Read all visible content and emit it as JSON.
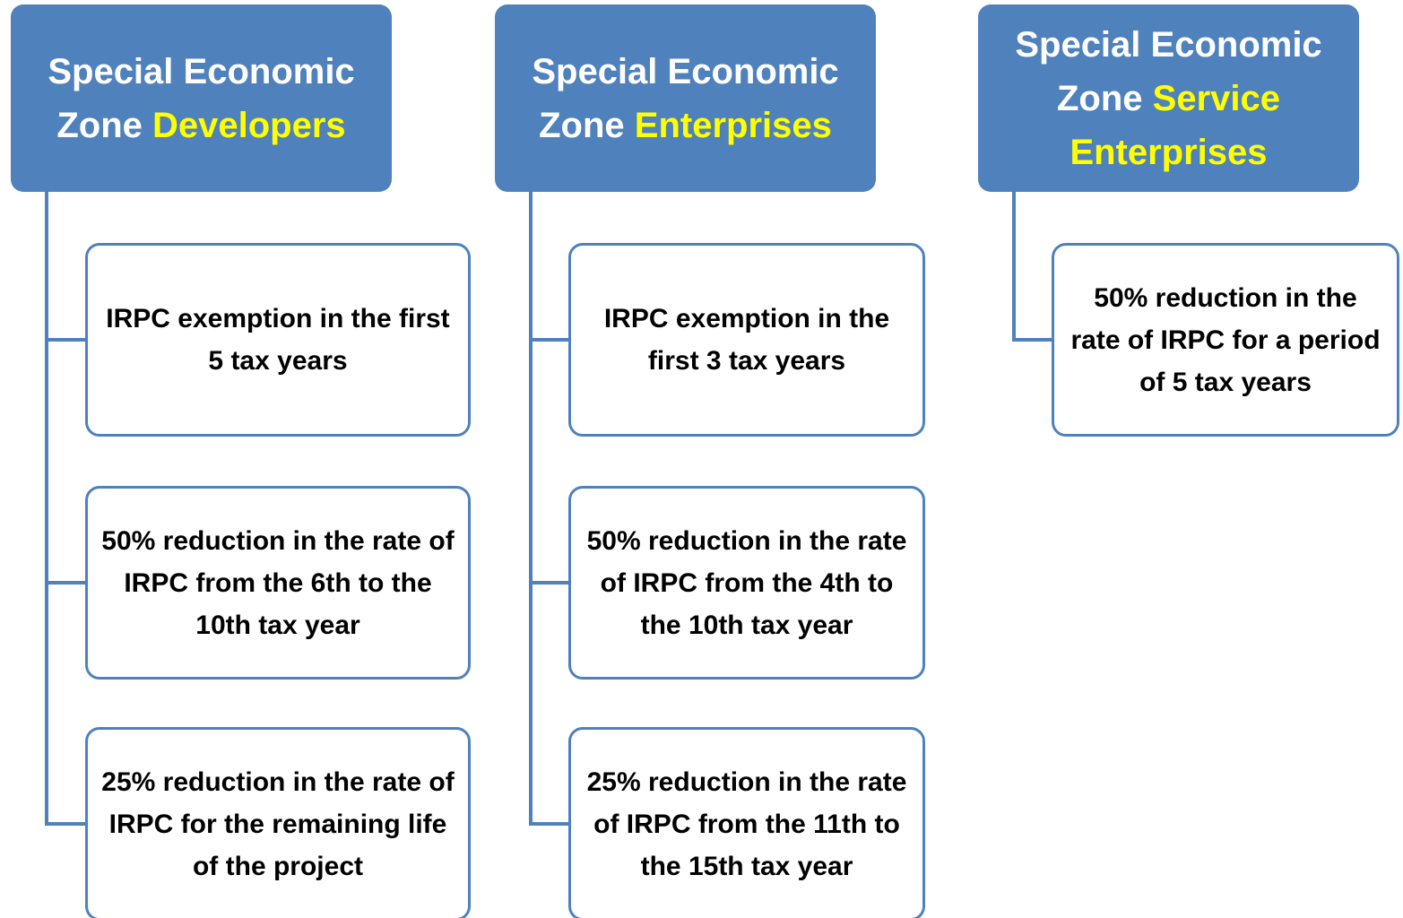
{
  "columns": [
    {
      "header": {
        "prefix": "Special Economic Zone",
        "highlight": "Developers"
      },
      "items": [
        "IRPC exemption in the first 5 tax years",
        "50% reduction in the rate of IRPC from the 6th to the 10th tax year",
        "25% reduction in the rate of IRPC for the remaining life of the project"
      ]
    },
    {
      "header": {
        "prefix": "Special Economic Zone",
        "highlight": "Enterprises"
      },
      "items": [
        "IRPC exemption in the first 3 tax years",
        "50% reduction in the rate of IRPC from the 4th to the 10th tax year",
        "25% reduction in the rate of IRPC from the 11th to the 15th tax year"
      ]
    },
    {
      "header": {
        "prefix": "Special Economic Zone",
        "highlight": "Service Enterprises"
      },
      "items": [
        "50% reduction in the rate of IRPC for a period of 5 tax years"
      ]
    }
  ]
}
